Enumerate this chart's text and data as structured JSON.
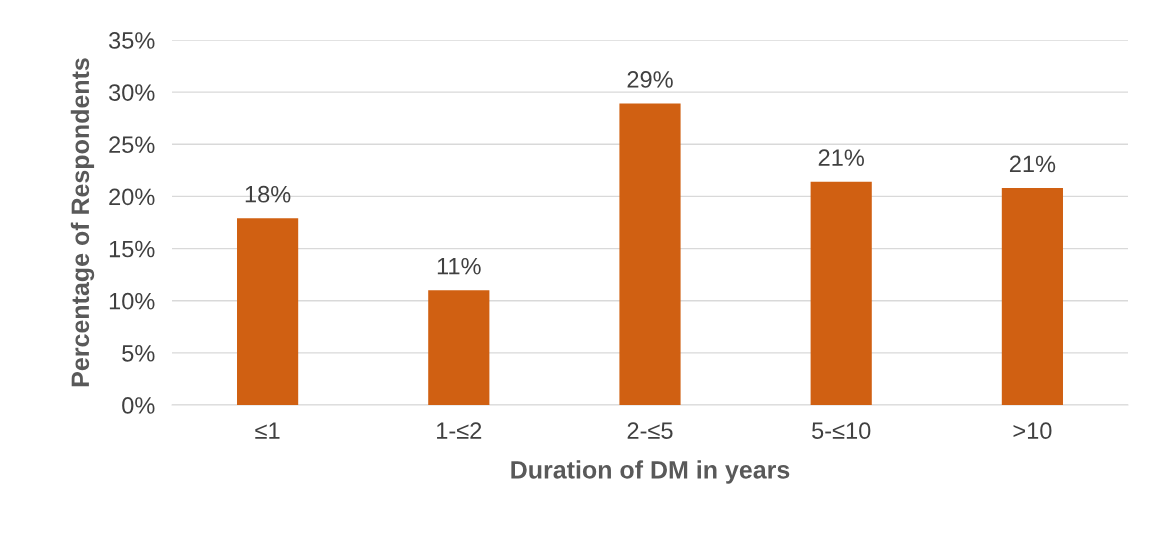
{
  "chart_data": {
    "type": "bar",
    "xlabel": "Duration of DM in years",
    "ylabel": "Percentage of Respondents",
    "categories": [
      "≤1",
      "1-≤2",
      "2-≤5",
      "5-≤10",
      ">10"
    ],
    "values": [
      17.9,
      11.0,
      28.9,
      21.4,
      20.8
    ],
    "value_labels": [
      "18%",
      "11%",
      "29%",
      "21%",
      "21%"
    ],
    "color": "#d06012",
    "ylim": [
      0,
      35
    ],
    "yticks": [
      {
        "value": 0,
        "label": "0%"
      },
      {
        "value": 5,
        "label": "5%"
      },
      {
        "value": 10,
        "label": "10%"
      },
      {
        "value": 15,
        "label": "15%"
      },
      {
        "value": 20,
        "label": "20%"
      },
      {
        "value": 25,
        "label": "25%"
      },
      {
        "value": 30,
        "label": "30%"
      },
      {
        "value": 35,
        "label": "35%"
      }
    ],
    "grid": "y"
  }
}
